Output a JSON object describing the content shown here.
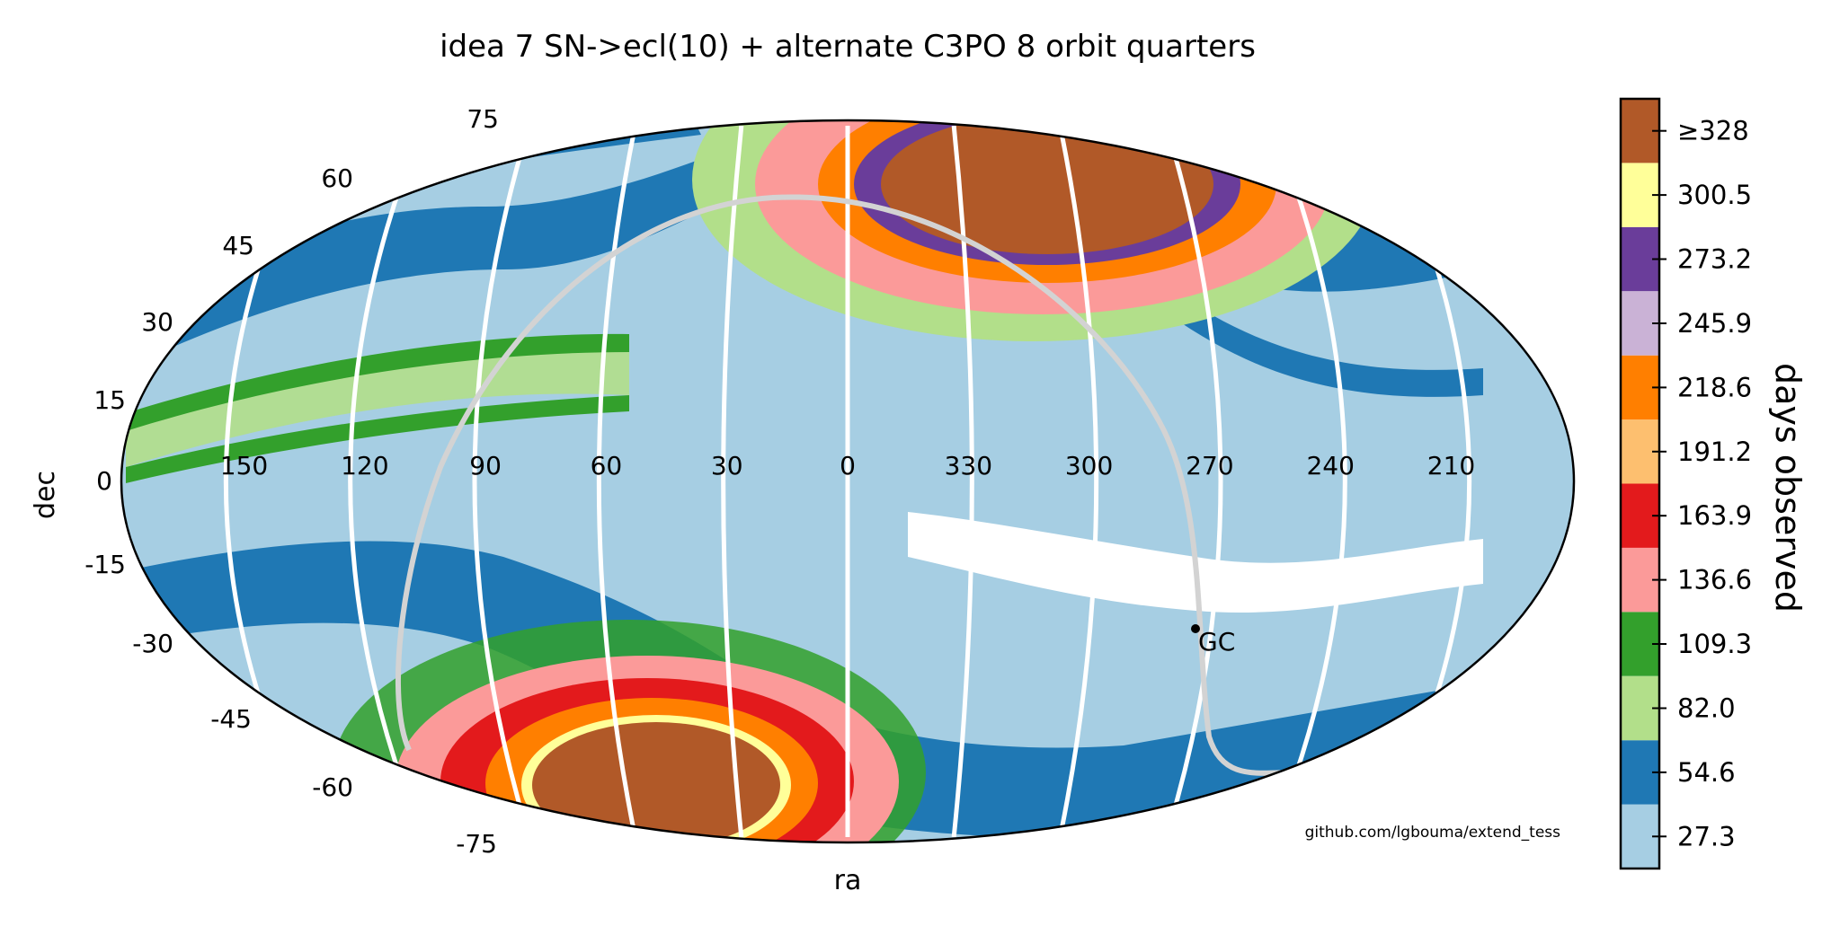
{
  "chart_data": {
    "type": "heatmap",
    "projection": "mollweide",
    "title": "idea 7 SN->ecl(10) + alternate C3PO 8 orbit quarters",
    "xlabel": "ra",
    "ylabel": "dec",
    "x_ticks": [
      "150",
      "120",
      "90",
      "60",
      "30",
      "0",
      "330",
      "300",
      "270",
      "240",
      "210"
    ],
    "y_ticks": [
      "75",
      "60",
      "45",
      "30",
      "15",
      "0",
      "-15",
      "-30",
      "-45",
      "-60",
      "-75"
    ],
    "colorbar": {
      "label": "days observed",
      "levels": [
        {
          "label": "27.3",
          "color": "#a6cee3"
        },
        {
          "label": "54.6",
          "color": "#1f78b4"
        },
        {
          "label": "82.0",
          "color": "#b2df8a"
        },
        {
          "label": "109.3",
          "color": "#33a02c"
        },
        {
          "label": "136.6",
          "color": "#fb9a99"
        },
        {
          "label": "163.9",
          "color": "#e31a1c"
        },
        {
          "label": "191.2",
          "color": "#fdbf6f"
        },
        {
          "label": "218.6",
          "color": "#ff7f00"
        },
        {
          "label": "245.9",
          "color": "#cab2d6"
        },
        {
          "label": "273.2",
          "color": "#6a3d9a"
        },
        {
          "label": "300.5",
          "color": "#ffff99"
        },
        {
          "label": "≥328",
          "color": "#b15928"
        }
      ]
    },
    "annotations": [
      {
        "text": "GC",
        "ra": 266.4,
        "dec": -28.9
      }
    ],
    "credit": "github.com/lgbouma/extend_tess"
  }
}
